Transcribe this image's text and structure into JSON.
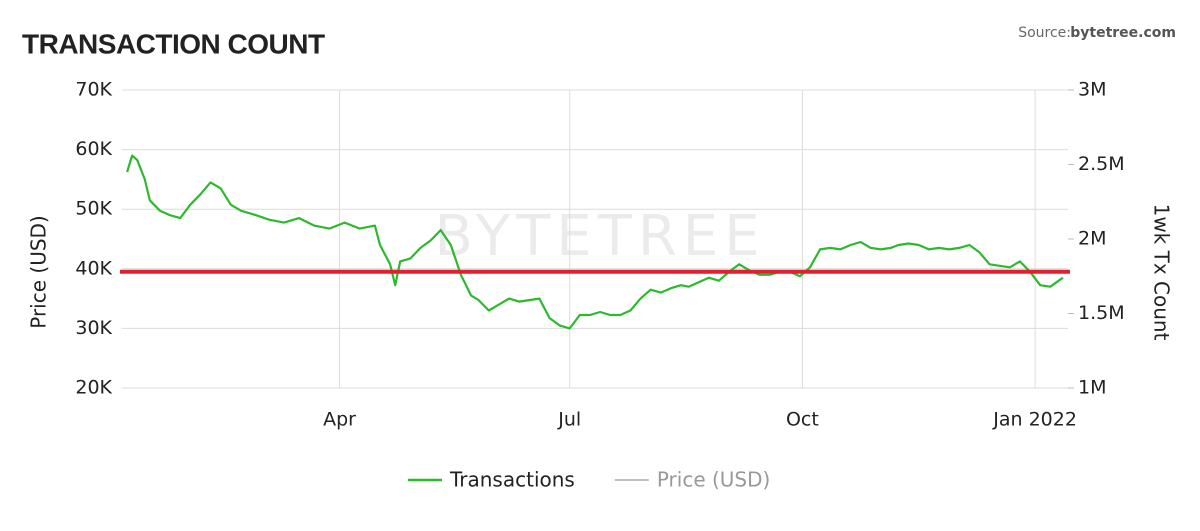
{
  "chart_data": {
    "type": "line",
    "title": "TRANSACTION COUNT",
    "source_label": "Source:",
    "source": "bytetree.com",
    "watermark": "BYTETREE",
    "ylabel": "Price (USD)",
    "y2label": "1wk Tx Count",
    "x": [
      6,
      8,
      10,
      13,
      15,
      19,
      23,
      27,
      31,
      35,
      39,
      43,
      47,
      51,
      57,
      62,
      68,
      74,
      80,
      86,
      92,
      98,
      104,
      106,
      110,
      112,
      114,
      118,
      122,
      126,
      130,
      134,
      138,
      142,
      145,
      149,
      153,
      157,
      161,
      165,
      169,
      173,
      177,
      181,
      185,
      189,
      193,
      197,
      201,
      205,
      209,
      213,
      217,
      221,
      225,
      228,
      232,
      236,
      240,
      244,
      248,
      252,
      256,
      260,
      264,
      268,
      272,
      276,
      280,
      284,
      288,
      292,
      296,
      300,
      304,
      308,
      311,
      315,
      319,
      323,
      327,
      331,
      335,
      339,
      343,
      347,
      351,
      355,
      359,
      363,
      367,
      371,
      376
    ],
    "xlim": [
      4,
      378
    ],
    "xticks": [
      {
        "value": 90,
        "label": "Apr"
      },
      {
        "value": 181,
        "label": "Jul"
      },
      {
        "value": 273,
        "label": "Oct"
      },
      {
        "value": 365,
        "label": "Jan 2022"
      }
    ],
    "ylim": [
      20000,
      70000
    ],
    "yticks": [
      {
        "value": 20000,
        "label": "20K"
      },
      {
        "value": 30000,
        "label": "30K"
      },
      {
        "value": 40000,
        "label": "40K"
      },
      {
        "value": 50000,
        "label": "50K"
      },
      {
        "value": 60000,
        "label": "60K"
      },
      {
        "value": 70000,
        "label": "70K"
      }
    ],
    "y2lim": [
      1000000,
      3000000
    ],
    "y2ticks": [
      {
        "value": 1000000,
        "label": "1M"
      },
      {
        "value": 1500000,
        "label": "1.5M"
      },
      {
        "value": 2000000,
        "label": "2M"
      },
      {
        "value": 2500000,
        "label": "2.5M"
      },
      {
        "value": 3000000,
        "label": "3M"
      }
    ],
    "grid": true,
    "reference_line": {
      "value": 1780000,
      "axis": "y2",
      "color": "#e0202e"
    },
    "series": [
      {
        "name": "Transactions",
        "color": "#2db92d",
        "axis": "y2",
        "visible": true,
        "values": [
          2450000,
          2560000,
          2530000,
          2400000,
          2260000,
          2190000,
          2160000,
          2140000,
          2230000,
          2300000,
          2380000,
          2340000,
          2230000,
          2190000,
          2160000,
          2130000,
          2110000,
          2140000,
          2090000,
          2070000,
          2110000,
          2070000,
          2090000,
          1960000,
          1830000,
          1690000,
          1850000,
          1870000,
          1940000,
          1990000,
          2060000,
          1960000,
          1760000,
          1620000,
          1590000,
          1520000,
          1560000,
          1600000,
          1580000,
          1590000,
          1600000,
          1470000,
          1420000,
          1400000,
          1490000,
          1490000,
          1510000,
          1490000,
          1490000,
          1520000,
          1600000,
          1660000,
          1640000,
          1670000,
          1690000,
          1680000,
          1710000,
          1740000,
          1720000,
          1780000,
          1830000,
          1790000,
          1760000,
          1760000,
          1780000,
          1780000,
          1750000,
          1810000,
          1930000,
          1940000,
          1930000,
          1960000,
          1980000,
          1940000,
          1930000,
          1940000,
          1960000,
          1970000,
          1960000,
          1930000,
          1940000,
          1930000,
          1940000,
          1960000,
          1910000,
          1830000,
          1820000,
          1810000,
          1850000,
          1780000,
          1690000,
          1680000,
          1740000
        ]
      },
      {
        "name": "Price (USD)",
        "color": "#999999",
        "visible": false
      }
    ]
  }
}
